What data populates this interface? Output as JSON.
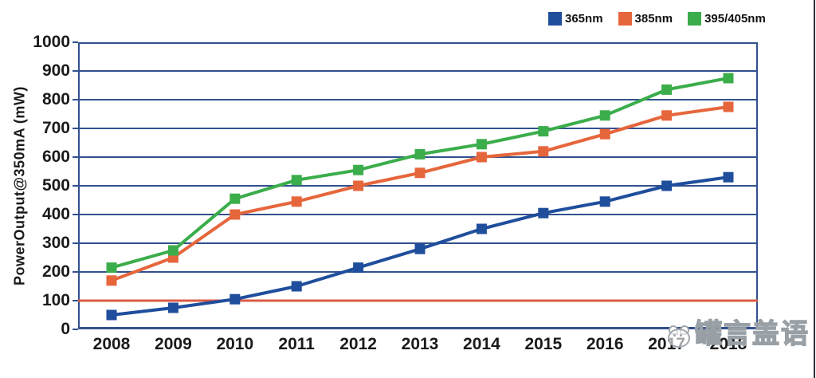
{
  "chart_data": {
    "type": "line",
    "ylabel": "PowerOutput@350mA (mW)",
    "xlabel": "",
    "categories": [
      "2008",
      "2009",
      "2010",
      "2011",
      "2012",
      "2013",
      "2014",
      "2015",
      "2016",
      "2017",
      "2018"
    ],
    "series": [
      {
        "name": "365nm",
        "color": "#1F4E9C",
        "values": [
          50,
          75,
          105,
          150,
          215,
          280,
          350,
          405,
          445,
          500,
          530
        ]
      },
      {
        "name": "385nm",
        "color": "#E6663C",
        "values": [
          170,
          250,
          400,
          445,
          500,
          545,
          600,
          620,
          680,
          745,
          775
        ]
      },
      {
        "name": "395/405nm",
        "color": "#3BAD4B",
        "values": [
          215,
          275,
          455,
          520,
          555,
          610,
          645,
          690,
          745,
          835,
          875
        ]
      }
    ],
    "ylim": [
      0,
      1000
    ],
    "yticks": [
      0,
      100,
      200,
      300,
      400,
      500,
      600,
      700,
      800,
      900,
      1000
    ],
    "grid": true,
    "grid_color": "#32508F",
    "reference_line": {
      "value": 100,
      "color": "#DB5B45"
    },
    "legend_position": "top-right"
  },
  "watermark": {
    "text": "罐言盖语"
  }
}
